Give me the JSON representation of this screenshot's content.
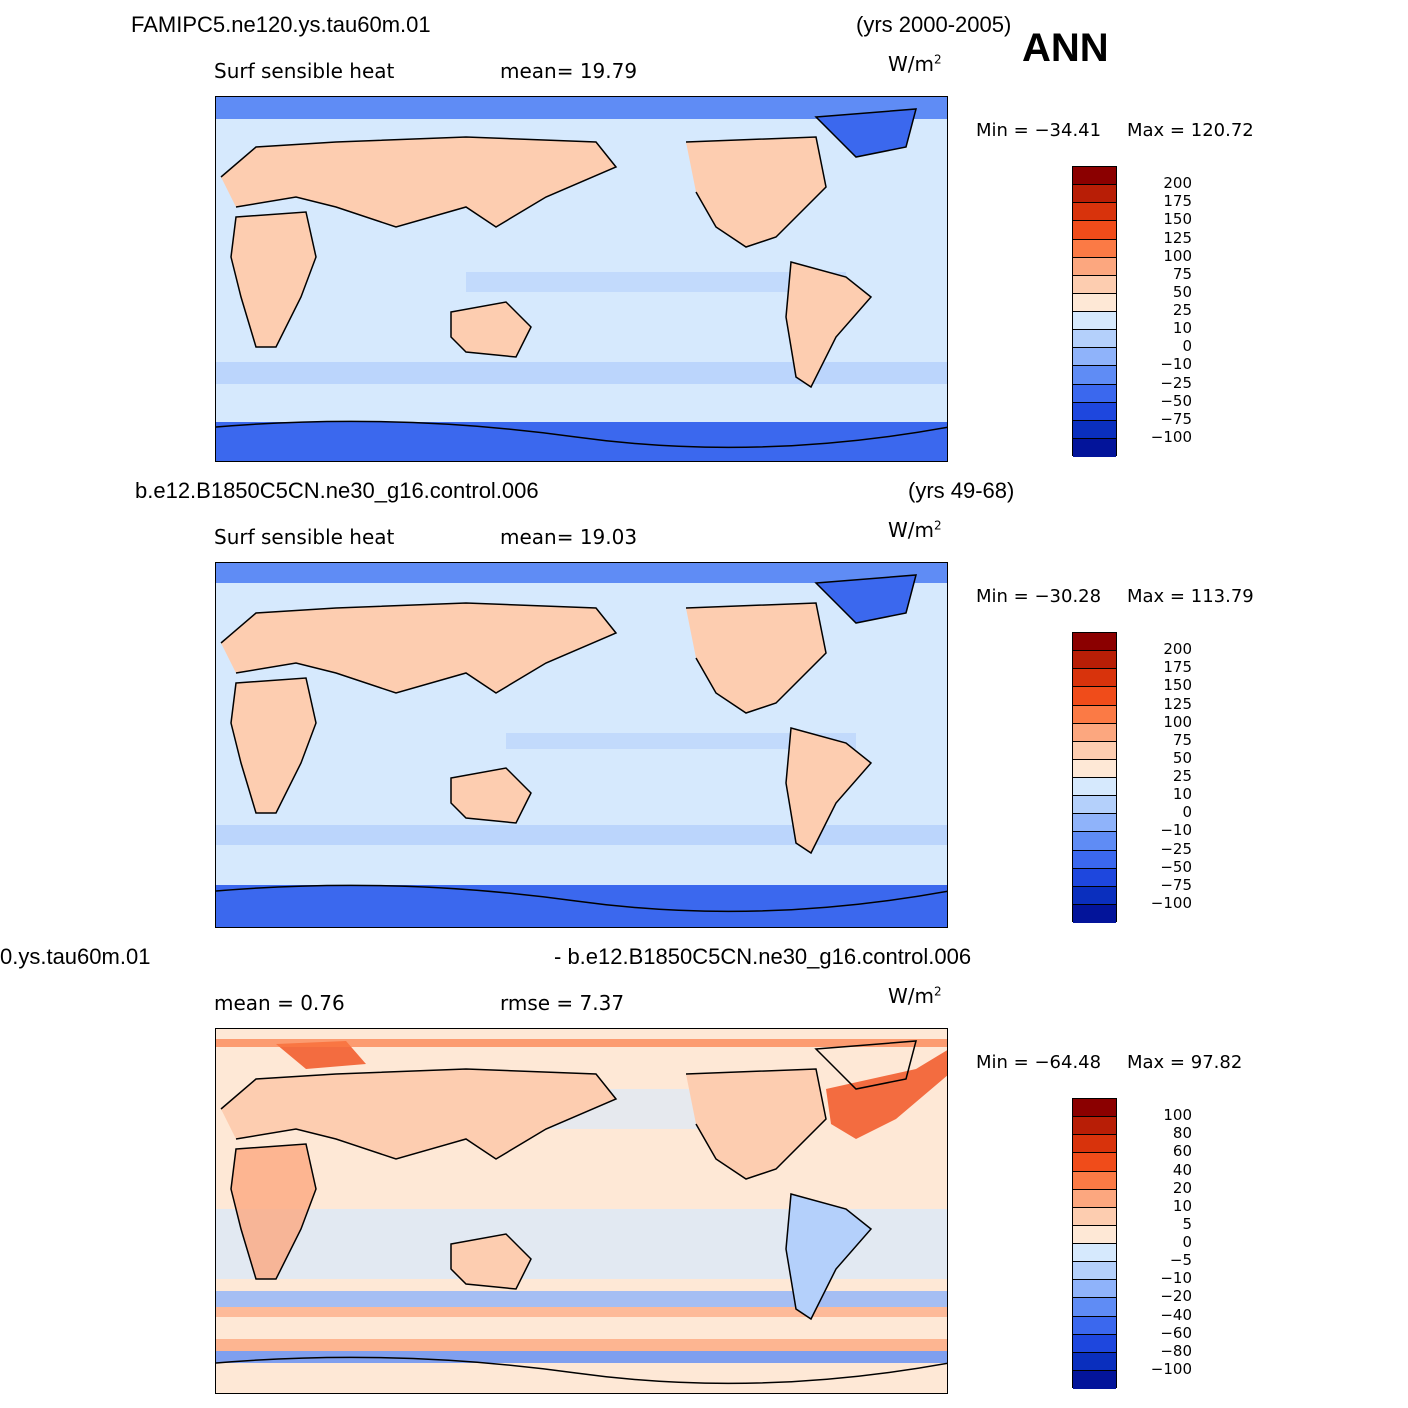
{
  "season": "ANN",
  "panels": [
    {
      "case": "FAMIPC5.ne120.ys.tau60m.01",
      "years": "(yrs 2000-2005)",
      "variable": "Surf  sensible  heat",
      "stat1": "mean=   19.79",
      "stat2": "",
      "units": "W/m",
      "units_exp": "2",
      "min": "Min  =  −34.41",
      "max": "Max  =  120.72",
      "levels": [
        "200",
        "175",
        "150",
        "125",
        "100",
        "75",
        "50",
        "25",
        "10",
        "0",
        "−10",
        "−25",
        "−50",
        "−75",
        "−100"
      ],
      "colors": [
        "#8b0000",
        "#b81e06",
        "#d8330c",
        "#f04c1a",
        "#fb7a45",
        "#fca77f",
        "#fdcdb0",
        "#fee8d6",
        "#d6e9fd",
        "#b4d0fb",
        "#8fb3fa",
        "#5f8cf5",
        "#3b68ee",
        "#1e47de",
        "#0a2fbe",
        "#03149a"
      ]
    },
    {
      "case": "b.e12.B1850C5CN.ne30_g16.control.006",
      "years": "(yrs 49-68)",
      "variable": "Surf  sensible  heat",
      "stat1": "mean=   19.03",
      "stat2": "",
      "units": "W/m",
      "units_exp": "2",
      "min": "Min  =  −30.28",
      "max": "Max  =  113.79",
      "levels": [
        "200",
        "175",
        "150",
        "125",
        "100",
        "75",
        "50",
        "25",
        "10",
        "0",
        "−10",
        "−25",
        "−50",
        "−75",
        "−100"
      ],
      "colors": [
        "#8b0000",
        "#b81e06",
        "#d8330c",
        "#f04c1a",
        "#fb7a45",
        "#fca77f",
        "#fdcdb0",
        "#fee8d6",
        "#d6e9fd",
        "#b4d0fb",
        "#8fb3fa",
        "#5f8cf5",
        "#3b68ee",
        "#1e47de",
        "#0a2fbe",
        "#03149a"
      ]
    },
    {
      "case_left": "0.ys.tau60m.01",
      "case_right": "- b.e12.B1850C5CN.ne30_g16.control.006",
      "stat1": "mean  =    0.76",
      "stat2": "rmse  =    7.37",
      "units": "W/m",
      "units_exp": "2",
      "min": "Min  =  −64.48",
      "max": "Max  =   97.82",
      "levels": [
        "100",
        "80",
        "60",
        "40",
        "20",
        "10",
        "5",
        "0",
        "−5",
        "−10",
        "−20",
        "−40",
        "−60",
        "−80",
        "−100"
      ],
      "colors": [
        "#8b0000",
        "#b81e06",
        "#d8330c",
        "#f04c1a",
        "#fb7a45",
        "#fca77f",
        "#fdcdb0",
        "#fee8d6",
        "#d6e9fd",
        "#b4d0fb",
        "#8fb3fa",
        "#5f8cf5",
        "#3b68ee",
        "#1e47de",
        "#0a2fbe",
        "#03149a"
      ]
    }
  ]
}
